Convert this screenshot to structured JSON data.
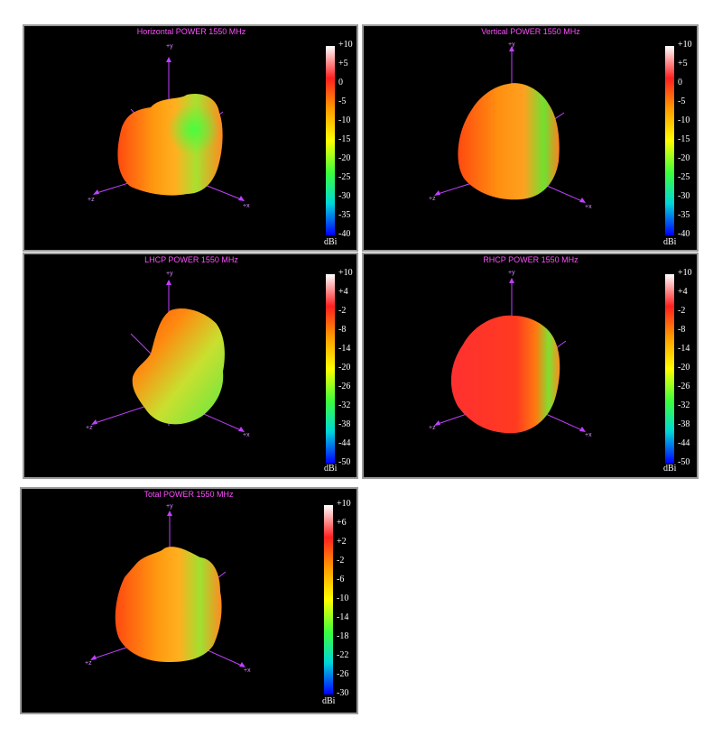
{
  "panels": [
    {
      "title": "Horizontal POWER 1550  MHz",
      "axes": {
        "y": "+y",
        "x": "+x",
        "z": "+z"
      },
      "colorbar": {
        "unit": "dBi",
        "ticks": [
          "+10",
          "+5",
          "0",
          "-5",
          "-10",
          "-15",
          "-20",
          "-25",
          "-30",
          "-35",
          "-40"
        ]
      }
    },
    {
      "title": "Vertical POWER 1550  MHz",
      "axes": {
        "y": "+y",
        "x": "+x",
        "z": "+z"
      },
      "colorbar": {
        "unit": "dBi",
        "ticks": [
          "+10",
          "+5",
          "0",
          "-5",
          "-10",
          "-15",
          "-20",
          "-25",
          "-30",
          "-35",
          "-40"
        ]
      }
    },
    {
      "title": "LHCP POWER 1550  MHz",
      "axes": {
        "y": "+y",
        "x": "+x",
        "z": "+z"
      },
      "colorbar": {
        "unit": "dBi",
        "ticks": [
          "+10",
          "+4",
          "-2",
          "-8",
          "-14",
          "-20",
          "-26",
          "-32",
          "-38",
          "-44",
          "-50"
        ]
      }
    },
    {
      "title": "RHCP POWER 1550  MHz",
      "axes": {
        "y": "+y",
        "x": "+x",
        "z": "+z"
      },
      "colorbar": {
        "unit": "dBi",
        "ticks": [
          "+10",
          "+4",
          "-2",
          "-8",
          "-14",
          "-20",
          "-26",
          "-32",
          "-38",
          "-44",
          "-50"
        ]
      }
    },
    {
      "title": "Total POWER 1550  MHz",
      "axes": {
        "y": "+y",
        "x": "+x",
        "z": "+z"
      },
      "colorbar": {
        "unit": "dBi",
        "ticks": [
          "+10",
          "+6",
          "+2",
          "-2",
          "-6",
          "-10",
          "-14",
          "-18",
          "-22",
          "-26",
          "-30"
        ]
      }
    }
  ],
  "colors": {
    "background": "#000000",
    "title": "#ff4fff",
    "axis": "#c040ff",
    "colormap": [
      "#ffffff",
      "#ff2020",
      "#ff9a00",
      "#ffff00",
      "#3cff3c",
      "#00d8d8",
      "#0000ff"
    ]
  }
}
